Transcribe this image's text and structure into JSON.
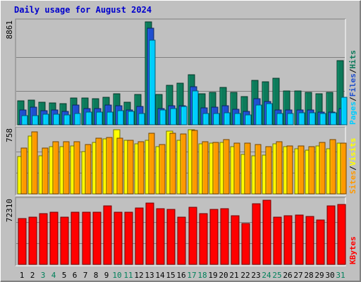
{
  "chart_data": {
    "type": "bar",
    "title": "Daily usage for August 2024",
    "categories": [
      "1",
      "2",
      "3",
      "4",
      "5",
      "6",
      "7",
      "8",
      "9",
      "10",
      "11",
      "12",
      "13",
      "14",
      "15",
      "16",
      "17",
      "18",
      "19",
      "20",
      "21",
      "22",
      "23",
      "24",
      "25",
      "26",
      "27",
      "28",
      "29",
      "30",
      "31"
    ],
    "weekend_days": [
      "3",
      "4",
      "10",
      "11",
      "17",
      "18",
      "24",
      "25",
      "31"
    ],
    "panels": [
      {
        "id": "top",
        "max_label": "8861",
        "ylim": [
          0,
          8861
        ],
        "series": [
          {
            "name": "Hits",
            "color": "#0d7a5a",
            "values": [
              2050,
              2100,
              1950,
              1900,
              1800,
              2300,
              2300,
              2250,
              2350,
              2650,
              1950,
              2600,
              8861,
              2600,
              3400,
              3600,
              4300,
              2700,
              2800,
              3200,
              2800,
              2400,
              3800,
              3700,
              4000,
              2900,
              2900,
              2800,
              2700,
              2800,
              5500
            ]
          },
          {
            "name": "Files",
            "color": "#1f4fd0",
            "values": [
              1300,
              1500,
              1200,
              1300,
              1150,
              1700,
              1400,
              1400,
              1700,
              1650,
              1300,
              1600,
              8300,
              1400,
              1650,
              1650,
              3300,
              1450,
              1500,
              1650,
              1350,
              1150,
              2250,
              2000,
              1250,
              1300,
              1250,
              1250,
              1100,
              1100,
              1400
            ]
          },
          {
            "name": "Pages",
            "color": "#00ccff",
            "values": [
              800,
              800,
              900,
              900,
              850,
              1000,
              1100,
              1100,
              1100,
              1200,
              1150,
              1000,
              7300,
              1250,
              1400,
              1600,
              2900,
              1000,
              1000,
              1050,
              950,
              850,
              1700,
              1800,
              950,
              1000,
              1050,
              1050,
              1000,
              1050,
              2350
            ]
          }
        ]
      },
      {
        "id": "middle",
        "max_label": "758",
        "ylim": [
          0,
          758
        ],
        "series": [
          {
            "name": "Visits",
            "color": "#ffff00",
            "values": [
              440,
              680,
              450,
              560,
              560,
              570,
              500,
              610,
              650,
              758,
              630,
              590,
              630,
              560,
              740,
              630,
              758,
              590,
              600,
              610,
              560,
              470,
              450,
              460,
              590,
              560,
              530,
              520,
              570,
              530,
              600
            ]
          },
          {
            "name": "Sites",
            "color": "#ff9900",
            "values": [
              540,
              730,
              540,
              620,
              620,
              620,
              580,
              660,
              670,
              660,
              630,
              620,
              720,
              580,
              720,
              710,
              750,
              620,
              610,
              640,
              600,
              600,
              580,
              560,
              620,
              570,
              570,
              560,
              610,
              640,
              600
            ]
          }
        ]
      },
      {
        "id": "bottom",
        "max_label": "72310",
        "ylim": [
          0,
          72310
        ],
        "series": [
          {
            "name": "KBytes",
            "color": "#ff0000",
            "values": [
              52000,
              53500,
              57000,
              59000,
              53500,
              59000,
              58500,
              59000,
              66000,
              59000,
              59000,
              63500,
              69500,
              63000,
              62000,
              53500,
              64000,
              57000,
              62000,
              63000,
              54500,
              46000,
              68000,
              72310,
              53500,
              55000,
              56000,
              54000,
              50000,
              66000,
              67500
            ]
          }
        ]
      }
    ]
  }
}
